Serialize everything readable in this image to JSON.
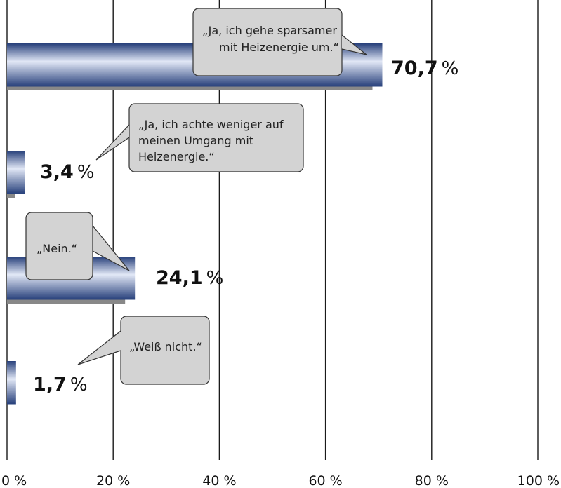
{
  "chart_data": {
    "type": "bar",
    "orientation": "horizontal",
    "xlim": [
      0,
      100
    ],
    "x_ticks": [
      "0 %",
      "20 %",
      "40 %",
      "60 %",
      "80 %",
      "100 %"
    ],
    "grid": true,
    "value_suffix": "%",
    "categories": [
      "„Ja, ich gehe sparsamer mit Heizenergie um.“",
      "„Ja, ich achte weniger auf meinen Umgang mit Heizenergie.“",
      "„Nein.“",
      "„Weiß nicht.“"
    ],
    "values": [
      70.7,
      3.4,
      24.1,
      1.7
    ],
    "value_labels": [
      "70,7",
      "3,4",
      "24,1",
      "1,7"
    ],
    "callout_lines": [
      [
        "„Ja, ich gehe sparsamer",
        "mit Heizenergie um.“"
      ],
      [
        "„Ja, ich achte weniger auf",
        "meinen Umgang mit",
        "Heizenergie.“"
      ],
      [
        "„Nein.“"
      ],
      [
        "„Weiß nicht.“"
      ]
    ],
    "colors": {
      "bar_dark": "#263f7a",
      "bar_light": "#e2e8f6",
      "bar_shadow": "#888888",
      "callout_fill": "#d3d3d3",
      "callout_stroke": "#333333",
      "grid": "#1a1a1a"
    }
  }
}
